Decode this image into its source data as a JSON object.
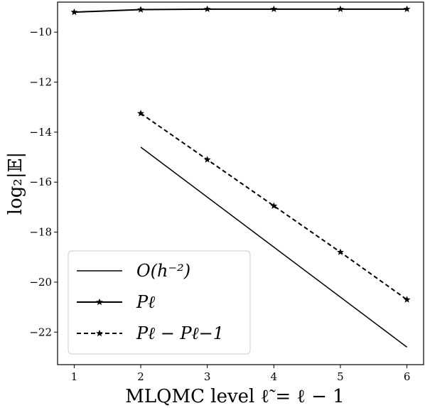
{
  "chart_data": {
    "type": "line",
    "xlabel": "MLQMC level ℓ̃ = ℓ − 1",
    "ylabel": "log₂|𝔼|",
    "xlim": [
      0.75,
      6.25
    ],
    "ylim": [
      -23.3,
      -8.8
    ],
    "xticks": [
      1,
      2,
      3,
      4,
      5,
      6
    ],
    "yticks": [
      -10,
      -12,
      -14,
      -16,
      -18,
      -20,
      -22
    ],
    "legend_position": "lower-left",
    "grid": false,
    "series": [
      {
        "name": "O(h⁻²)",
        "x": [
          2,
          6
        ],
        "y": [
          -14.6,
          -22.6
        ],
        "linestyle": "solid",
        "marker": "none",
        "color": "#000000"
      },
      {
        "name": "Pℓ",
        "x": [
          1,
          2,
          3,
          4,
          5,
          6
        ],
        "y": [
          -9.2,
          -9.1,
          -9.08,
          -9.08,
          -9.08,
          -9.08
        ],
        "linestyle": "solid",
        "marker": "star",
        "color": "#000000"
      },
      {
        "name": "Pℓ − Pℓ−1",
        "x": [
          2,
          3,
          4,
          5,
          6
        ],
        "y": [
          -13.25,
          -15.1,
          -16.95,
          -18.8,
          -20.7
        ],
        "linestyle": "dashed",
        "marker": "star",
        "color": "#000000"
      }
    ]
  }
}
